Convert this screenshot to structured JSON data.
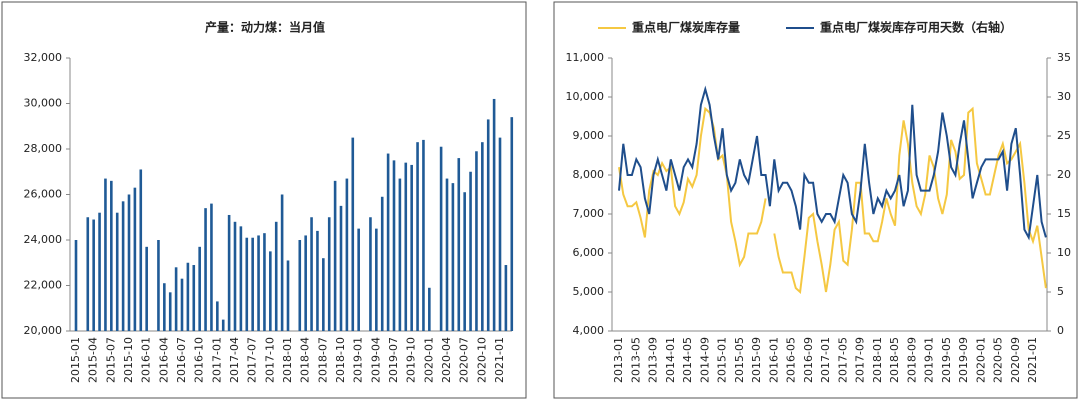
{
  "chart_data": [
    {
      "type": "bar",
      "title": "产量：动力煤：当月值",
      "color": "#1f5a96",
      "categories": [
        "2015-01",
        null,
        null,
        "2015-04",
        null,
        null,
        "2015-07",
        null,
        null,
        "2015-10",
        null,
        null,
        "2016-01",
        null,
        null,
        "2016-04",
        null,
        null,
        "2016-07",
        null,
        null,
        "2016-10",
        null,
        null,
        "2017-01",
        null,
        null,
        "2017-04",
        null,
        null,
        "2017-07",
        null,
        null,
        "2017-10",
        null,
        null,
        "2018-01",
        null,
        null,
        "2018-04",
        null,
        null,
        "2018-07",
        null,
        null,
        "2018-10",
        null,
        null,
        "2019-01",
        null,
        null,
        "2019-04",
        null,
        null,
        "2019-07",
        null,
        null,
        "2019-10",
        null,
        null,
        "2020-01",
        null,
        null,
        "2020-04",
        null,
        null,
        "2020-07",
        null,
        null,
        "2020-10",
        null,
        null,
        "2021-01",
        null,
        null
      ],
      "values": [
        24000,
        null,
        25000,
        24900,
        25200,
        26700,
        26600,
        25200,
        25700,
        26000,
        26300,
        27100,
        23700,
        null,
        24000,
        22100,
        21700,
        22800,
        22300,
        23000,
        22900,
        23700,
        25400,
        25600,
        21300,
        20500,
        25100,
        24800,
        24600,
        24100,
        24100,
        24200,
        24300,
        23500,
        24800,
        26000,
        23100,
        null,
        24000,
        24200,
        25000,
        24400,
        23200,
        25000,
        26600,
        25500,
        26700,
        28500,
        24500,
        null,
        25000,
        24500,
        25900,
        27800,
        27500,
        26700,
        27400,
        27300,
        28300,
        28400,
        21900,
        null,
        28100,
        26700,
        26500,
        27600,
        26100,
        27000,
        27900,
        28300,
        29300,
        30200,
        28500,
        22900,
        29400
      ],
      "ylim": [
        20000,
        32000
      ],
      "yticks": [
        {
          "value": 20000,
          "label": "20,000"
        },
        {
          "value": 22000,
          "label": "22,000"
        },
        {
          "value": 24000,
          "label": "24,000"
        },
        {
          "value": 26000,
          "label": "26,000"
        },
        {
          "value": 28000,
          "label": "28,000"
        },
        {
          "value": 30000,
          "label": "30,000"
        },
        {
          "value": 32000,
          "label": "32,000"
        }
      ]
    },
    {
      "type": "line",
      "categories": [
        "2013-01",
        null,
        null,
        null,
        "2013-05",
        null,
        null,
        null,
        "2013-09",
        null,
        null,
        null,
        "2014-01",
        null,
        null,
        null,
        "2014-05",
        null,
        null,
        null,
        "2014-09",
        null,
        null,
        null,
        "2015-01",
        null,
        null,
        null,
        "2015-05",
        null,
        null,
        null,
        "2015-09",
        null,
        null,
        null,
        "2016-01",
        null,
        null,
        null,
        "2016-05",
        null,
        null,
        null,
        "2016-09",
        null,
        null,
        null,
        "2017-01",
        null,
        null,
        null,
        "2017-05",
        null,
        null,
        null,
        "2017-09",
        null,
        null,
        null,
        "2018-01",
        null,
        null,
        null,
        "2018-05",
        null,
        null,
        null,
        "2018-09",
        null,
        null,
        null,
        "2019-01",
        null,
        null,
        null,
        "2019-05",
        null,
        null,
        null,
        "2019-09",
        null,
        null,
        null,
        "2020-01",
        null,
        null,
        null,
        "2020-05",
        null,
        null,
        null,
        "2020-09",
        null,
        null,
        null,
        "2021-01",
        null,
        null,
        null
      ],
      "series": [
        {
          "name": "重点电厂煤炭库存量",
          "color": "#f5c842",
          "values": [
            8200,
            7500,
            7200,
            7200,
            7300,
            6900,
            6400,
            7600,
            8100,
            8000,
            8300,
            8100,
            8200,
            7200,
            7000,
            7300,
            7900,
            7700,
            8000,
            9000,
            9700,
            9600,
            9200,
            8400,
            8500,
            8000,
            6800,
            6300,
            5700,
            5900,
            6500,
            6500,
            6500,
            6800,
            7400,
            null,
            6500,
            5900,
            5500,
            5500,
            5500,
            5100,
            5000,
            5900,
            6900,
            7000,
            6300,
            5700,
            5000,
            5700,
            6600,
            6800,
            5800,
            5700,
            6600,
            7800,
            7800,
            6500,
            6500,
            6300,
            6300,
            6800,
            7400,
            7000,
            6700,
            8500,
            9400,
            8800,
            7800,
            7200,
            7000,
            7500,
            8500,
            8200,
            7400,
            7000,
            7500,
            8900,
            8600,
            7900,
            8000,
            9600,
            9700,
            8300,
            7900,
            7500,
            7500,
            8000,
            8500,
            8800,
            8300,
            8400,
            8600,
            8800,
            7800,
            6600,
            6300,
            6700,
            5900,
            5100
          ]
        },
        {
          "name": "重点电厂煤炭库存可用天数（右轴）",
          "color": "#1f4e8c",
          "axis": "y2",
          "values": [
            18,
            24,
            20,
            20,
            22,
            21,
            17,
            15,
            20,
            22,
            20,
            18,
            22,
            20,
            18,
            21,
            22,
            21,
            24,
            29,
            31,
            29,
            25,
            22,
            26,
            20,
            18,
            19,
            22,
            20,
            19,
            22,
            25,
            20,
            20,
            16,
            22,
            18,
            19,
            19,
            18,
            16,
            13,
            20,
            19,
            19,
            15,
            14,
            15,
            15,
            14,
            17,
            20,
            19,
            15,
            14,
            18,
            24,
            19,
            15,
            17,
            16,
            18,
            17,
            18,
            20,
            16,
            18,
            29,
            20,
            18,
            18,
            18,
            20,
            23,
            28,
            25,
            21,
            20,
            24,
            27,
            22,
            17,
            19,
            21,
            22,
            22,
            22,
            22,
            23,
            18,
            24,
            26,
            20,
            13,
            12,
            16,
            20,
            14,
            12
          ]
        }
      ],
      "ylim": [
        4000,
        11000
      ],
      "yticks": [
        {
          "value": 4000,
          "label": "4,000"
        },
        {
          "value": 5000,
          "label": "5,000"
        },
        {
          "value": 6000,
          "label": "6,000"
        },
        {
          "value": 7000,
          "label": "7,000"
        },
        {
          "value": 8000,
          "label": "8,000"
        },
        {
          "value": 9000,
          "label": "9,000"
        },
        {
          "value": 10000,
          "label": "10,000"
        },
        {
          "value": 11000,
          "label": "11,000"
        }
      ],
      "y2lim": [
        0,
        35
      ],
      "y2ticks": [
        0,
        5,
        10,
        15,
        20,
        25,
        30,
        35
      ]
    }
  ]
}
